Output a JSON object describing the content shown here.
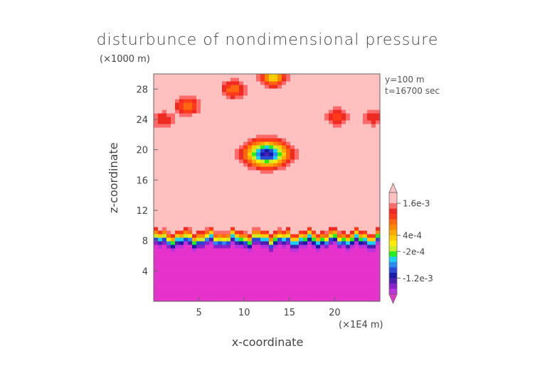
{
  "chart_data": {
    "type": "heatmap",
    "title": "disturbunce of nondimensional pressure",
    "xlabel": "x-coordinate",
    "ylabel": "z-coordinate",
    "x_unit": "(×1E4 m)",
    "y_unit": "(×1000 m)",
    "annotations": [
      "y=100 m",
      "t=16700 sec"
    ],
    "xlim": [
      0,
      25
    ],
    "ylim": [
      0,
      30
    ],
    "x_ticks": [
      5,
      10,
      15,
      20
    ],
    "y_ticks": [
      4,
      8,
      12,
      16,
      20,
      24,
      28
    ],
    "colorbar": {
      "tick_labels": [
        "1.6e-3",
        "4e-4",
        "-2e-4",
        "-1.2e-3"
      ],
      "levels": [
        -0.0018,
        -0.0016,
        -0.0014,
        -0.0012,
        -0.001,
        -0.0008,
        -0.0006,
        -0.0004,
        -0.0002,
        0,
        0.0002,
        0.0004,
        0.0006,
        0.0008,
        0.001,
        0.0012,
        0.0014,
        0.0016,
        0.0018
      ]
    },
    "background_value": 0.0019,
    "lower_layer": {
      "z_top": 8.3,
      "value": -0.0019
    },
    "anomalies": [
      {
        "x": 12.5,
        "z": 19.5,
        "value": -0.0013
      },
      {
        "x": 3.7,
        "z": 25.8,
        "value": 0.0008
      },
      {
        "x": 8.8,
        "z": 28.0,
        "value": 0.0008
      },
      {
        "x": 13.2,
        "z": 29.6,
        "value": 0.0002
      },
      {
        "x": 20.3,
        "z": 24.4,
        "value": 0.001
      },
      {
        "x": 24.3,
        "z": 24.3,
        "value": 0.0012
      },
      {
        "x": 1.0,
        "z": 24.0,
        "value": 0.0012
      }
    ]
  }
}
